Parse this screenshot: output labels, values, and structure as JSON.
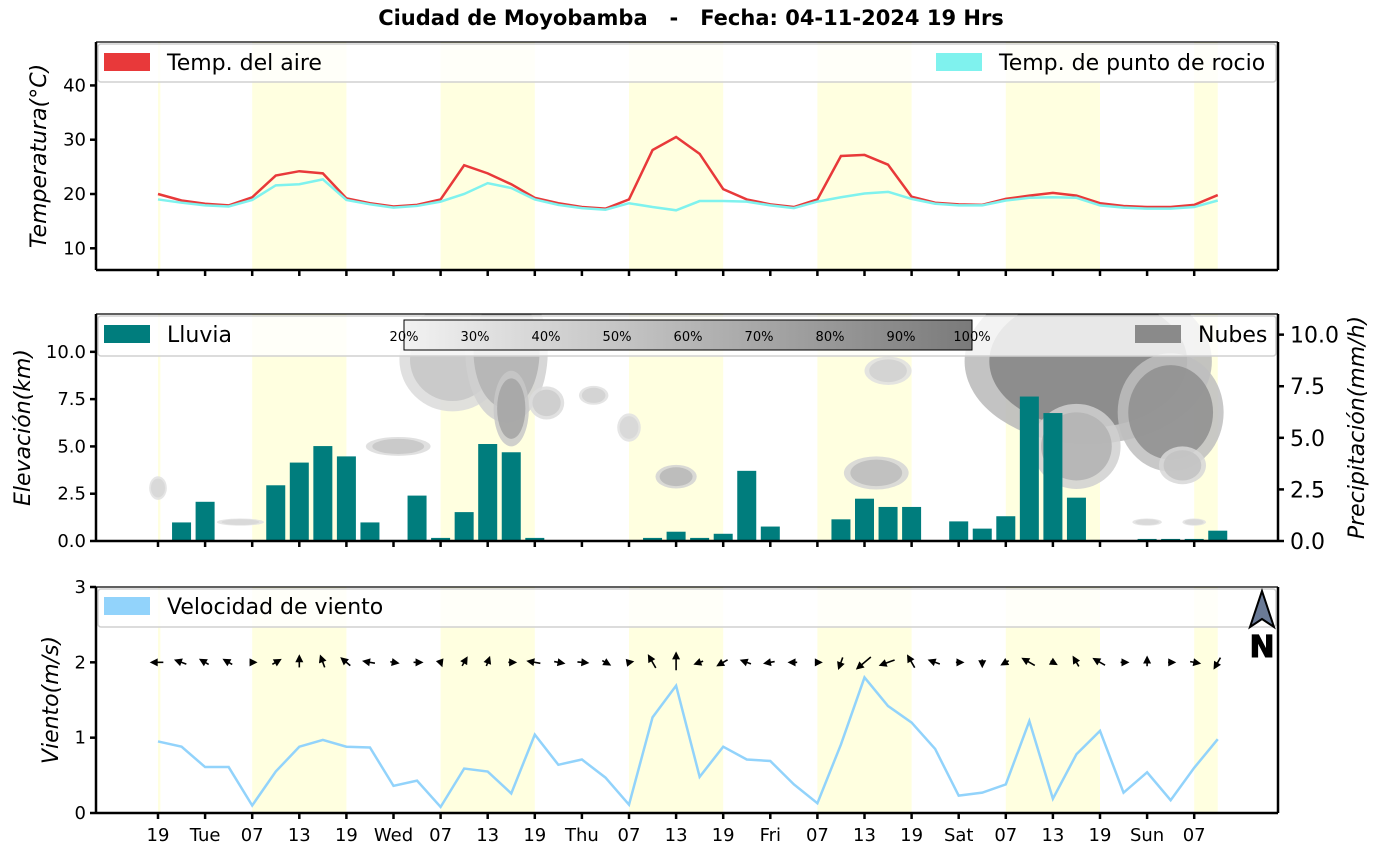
{
  "title": "Ciudad de Moyobamba   -   Fecha: 04-11-2024 19 Hrs",
  "x_ticks": [
    "19",
    "Tue",
    "07",
    "13",
    "19",
    "Wed",
    "07",
    "13",
    "19",
    "Thu",
    "07",
    "13",
    "19",
    "Fri",
    "07",
    "13",
    "19",
    "Sat",
    "07",
    "13",
    "19",
    "Sun",
    "07"
  ],
  "daylight_bands": [
    [
      0,
      0.1
    ],
    [
      4,
      8
    ],
    [
      12,
      16
    ],
    [
      20,
      24
    ],
    [
      28,
      32
    ],
    [
      36,
      40
    ],
    [
      44,
      45
    ]
  ],
  "colors": {
    "air": "#e8393a",
    "dew": "#7ff2ee",
    "rain": "#007d7d",
    "clouds": "#8a8a8a",
    "wind": "#92d3fb",
    "daylight": "#ffffe0"
  },
  "chart_data": [
    {
      "type": "line",
      "ylabel": "Temperatura(°C)",
      "ylim": [
        6,
        48
      ],
      "yticks": [
        10,
        20,
        30,
        40
      ],
      "legend": {
        "left": "Temp. del aire",
        "right": "Temp. de punto de rocio"
      },
      "x_step_hours": 3,
      "series": [
        {
          "name": "Temp. del aire",
          "values": [
            20,
            18.8,
            18.2,
            17.9,
            19.4,
            23.4,
            24.2,
            23.8,
            19.2,
            18.3,
            17.7,
            18,
            19,
            25.3,
            23.8,
            21.8,
            19.3,
            18.3,
            17.6,
            17.3,
            19,
            28.1,
            30.5,
            27.4,
            20.9,
            19,
            18.1,
            17.6,
            19,
            27,
            27.2,
            25.4,
            19.5,
            18.4,
            18.1,
            18,
            19.1,
            19.7,
            20.2,
            19.7,
            18.3,
            17.8,
            17.6,
            17.6,
            18,
            19.8
          ]
        },
        {
          "name": "Temp. de punto de rocio",
          "values": [
            19,
            18.4,
            17.9,
            17.7,
            18.9,
            21.6,
            21.8,
            22.7,
            18.9,
            18.1,
            17.5,
            17.8,
            18.6,
            20,
            22,
            21.1,
            19,
            18,
            17.4,
            17.1,
            18.3,
            17.6,
            17,
            18.7,
            18.7,
            18.6,
            17.9,
            17.4,
            18.6,
            19.4,
            20.1,
            20.4,
            19.1,
            18.2,
            17.9,
            17.9,
            18.8,
            19.3,
            19.4,
            19.3,
            17.9,
            17.5,
            17.3,
            17.3,
            17.6,
            18.8
          ]
        }
      ]
    },
    {
      "type": "bar",
      "ylabel": "Elevación(km)",
      "ylabel_right": "Precipitación(mm/h)",
      "ylim": [
        0,
        12
      ],
      "yticks": [
        "0.0",
        "2.5",
        "5.0",
        "7.5",
        "10.0"
      ],
      "ylim_right": [
        0,
        11
      ],
      "yticks_right": [
        "0.0",
        "2.5",
        "5.0",
        "7.5",
        "10.0"
      ],
      "legend": {
        "left": "Lluvia",
        "right": "Nubes"
      },
      "colorbar_labels": [
        "20%",
        "30%",
        "40%",
        "50%",
        "60%",
        "70%",
        "80%",
        "90%",
        "100%"
      ],
      "x_step_hours": 3,
      "series": [
        {
          "name": "Lluvia",
          "values": [
            0,
            0.9,
            1.9,
            0.05,
            0,
            2.7,
            3.8,
            4.6,
            4.1,
            0.9,
            0.05,
            2.2,
            0.15,
            1.4,
            4.7,
            4.3,
            0.15,
            0,
            0,
            0,
            0,
            0.15,
            0.45,
            0.15,
            0.35,
            3.4,
            0.7,
            0,
            0,
            1.05,
            2.05,
            1.65,
            1.65,
            0,
            0.95,
            0.6,
            1.2,
            7,
            6.2,
            2.1,
            0.05,
            0,
            0.1,
            0.1,
            0.1,
            0.5
          ]
        }
      ],
      "clouds": [
        {
          "x": 0,
          "y": 2.8,
          "rx": 0.3,
          "ry": 0.5,
          "cover": 0.2
        },
        {
          "x": 3.5,
          "y": 1.0,
          "rx": 0.8,
          "ry": 0.15,
          "cover": 0.2
        },
        {
          "x": 10.2,
          "y": 5.0,
          "rx": 1.1,
          "ry": 0.4,
          "cover": 0.35
        },
        {
          "x": 12.5,
          "y": 9.6,
          "rx": 1.8,
          "ry": 2.2,
          "cover": 0.35
        },
        {
          "x": 14.8,
          "y": 10.0,
          "rx": 1.4,
          "ry": 3.0,
          "cover": 0.55
        },
        {
          "x": 15.0,
          "y": 7.0,
          "rx": 0.6,
          "ry": 1.6,
          "cover": 0.7
        },
        {
          "x": 16.5,
          "y": 7.3,
          "rx": 0.6,
          "ry": 0.7,
          "cover": 0.3
        },
        {
          "x": 18.5,
          "y": 7.7,
          "rx": 0.5,
          "ry": 0.4,
          "cover": 0.25
        },
        {
          "x": 20.0,
          "y": 6.0,
          "rx": 0.4,
          "ry": 0.6,
          "cover": 0.2
        },
        {
          "x": 22.0,
          "y": 3.4,
          "rx": 0.7,
          "ry": 0.5,
          "cover": 0.5
        },
        {
          "x": 30.5,
          "y": 3.6,
          "rx": 1.1,
          "ry": 0.7,
          "cover": 0.45
        },
        {
          "x": 31.0,
          "y": 9.0,
          "rx": 0.8,
          "ry": 0.6,
          "cover": 0.25
        },
        {
          "x": 39.5,
          "y": 9.5,
          "rx": 4.2,
          "ry": 3.5,
          "cover": 1.0
        },
        {
          "x": 43.0,
          "y": 6.8,
          "rx": 1.8,
          "ry": 2.5,
          "cover": 0.9
        },
        {
          "x": 39.0,
          "y": 5.0,
          "rx": 1.5,
          "ry": 1.8,
          "cover": 0.55
        },
        {
          "x": 43.5,
          "y": 4.0,
          "rx": 0.8,
          "ry": 0.8,
          "cover": 0.4
        },
        {
          "x": 42.0,
          "y": 1.0,
          "rx": 0.5,
          "ry": 0.15,
          "cover": 0.2
        },
        {
          "x": 44.0,
          "y": 1.0,
          "rx": 0.4,
          "ry": 0.15,
          "cover": 0.2
        }
      ]
    },
    {
      "type": "line",
      "ylabel": "Viento(m/s)",
      "ylim": [
        0,
        3
      ],
      "yticks": [
        0,
        1,
        2,
        3
      ],
      "legend": {
        "left": "Velocidad de viento"
      },
      "north_label": "N",
      "x_step_hours": 3,
      "series": [
        {
          "name": "Velocidad de viento",
          "values": [
            0.95,
            0.88,
            0.61,
            0.61,
            0.1,
            0.55,
            0.88,
            0.97,
            0.88,
            0.87,
            0.36,
            0.43,
            0.08,
            0.59,
            0.55,
            0.26,
            1.04,
            0.64,
            0.71,
            0.47,
            0.11,
            1.27,
            1.69,
            0.48,
            0.88,
            0.71,
            0.69,
            0.38,
            0.13,
            0.91,
            1.8,
            1.42,
            1.2,
            0.85,
            0.23,
            0.27,
            0.38,
            1.22,
            0.19,
            0.78,
            1.09,
            0.27,
            0.54,
            0.17,
            0.6,
            0.98
          ]
        }
      ],
      "wind_direction_deg": [
        270,
        290,
        300,
        300,
        90,
        60,
        0,
        340,
        310,
        280,
        100,
        90,
        160,
        30,
        20,
        90,
        280,
        100,
        95,
        120,
        80,
        330,
        0,
        250,
        240,
        290,
        260,
        270,
        90,
        200,
        230,
        250,
        330,
        290,
        90,
        180,
        240,
        300,
        120,
        330,
        300,
        90,
        0,
        90,
        100,
        210
      ]
    }
  ]
}
